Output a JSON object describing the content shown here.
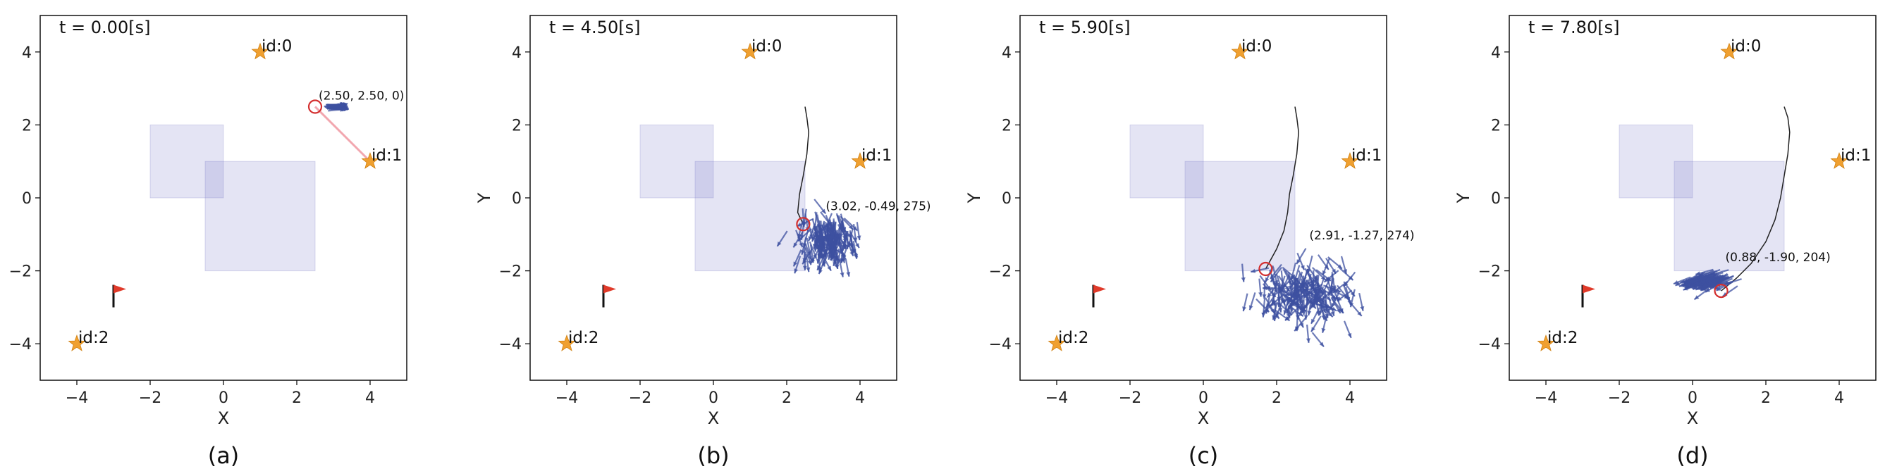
{
  "chart_data": [
    {
      "type": "scatter",
      "caption": "(a)",
      "time_label": "t = 0.00[s]",
      "xlabel": "X",
      "ylabel": "",
      "xlim": [
        -5,
        5
      ],
      "ylim": [
        -5,
        5
      ],
      "xticks": [
        "−4",
        "−2",
        "0",
        "2",
        "4"
      ],
      "yticks": [
        "−4",
        "−2",
        "0",
        "2",
        "4"
      ],
      "landmarks": [
        {
          "label": "id:0",
          "x": 1,
          "y": 4
        },
        {
          "label": "id:1",
          "x": 4,
          "y": 1
        },
        {
          "label": "id:2",
          "x": -4,
          "y": -4
        }
      ],
      "goal_flag": {
        "x": -3,
        "y": -2.5
      },
      "obstacles": [
        {
          "x0": -2,
          "y0": 0,
          "x1": 0,
          "y1": 2
        },
        {
          "x0": -0.5,
          "y0": -2,
          "x1": 2.5,
          "y1": 1
        }
      ],
      "robot": {
        "x": 2.5,
        "y": 2.5,
        "label": "(2.50, 2.50, 0)"
      },
      "observation_line": {
        "x0": 2.5,
        "y0": 2.5,
        "x1": 4,
        "y1": 1
      },
      "particles": {
        "cx": 2.85,
        "cy": 2.5,
        "sx": 0.04,
        "sy": 0.04,
        "dir": 0,
        "dir_spread": 4,
        "count": 40
      },
      "trajectory": []
    },
    {
      "type": "scatter",
      "caption": "(b)",
      "time_label": "t = 4.50[s]",
      "xlabel": "X",
      "ylabel": "Y",
      "xlim": [
        -5,
        5
      ],
      "ylim": [
        -5,
        5
      ],
      "xticks": [
        "−4",
        "−2",
        "0",
        "2",
        "4"
      ],
      "yticks": [
        "−4",
        "−2",
        "0",
        "2",
        "4"
      ],
      "landmarks": [
        {
          "label": "id:0",
          "x": 1,
          "y": 4
        },
        {
          "label": "id:1",
          "x": 4,
          "y": 1
        },
        {
          "label": "id:2",
          "x": -4,
          "y": -4
        }
      ],
      "goal_flag": {
        "x": -3,
        "y": -2.5
      },
      "obstacles": [
        {
          "x0": -2,
          "y0": 0,
          "x1": 0,
          "y1": 2
        },
        {
          "x0": -0.5,
          "y0": -2,
          "x1": 2.5,
          "y1": 1
        }
      ],
      "robot": {
        "x": 2.45,
        "y": -0.72,
        "label": "(3.02, -0.49, 275)"
      },
      "observation_line": null,
      "particles": {
        "cx": 3.1,
        "cy": -0.95,
        "sx": 0.35,
        "sy": 0.3,
        "dir": 275,
        "dir_spread": 20,
        "count": 180
      },
      "trajectory": [
        [
          2.5,
          2.5
        ],
        [
          2.55,
          2.2
        ],
        [
          2.6,
          1.8
        ],
        [
          2.55,
          1.2
        ],
        [
          2.45,
          0.6
        ],
        [
          2.35,
          0.1
        ],
        [
          2.3,
          -0.4
        ],
        [
          2.45,
          -0.72
        ]
      ]
    },
    {
      "type": "scatter",
      "caption": "(c)",
      "time_label": "t = 5.90[s]",
      "xlabel": "X",
      "ylabel": "Y",
      "xlim": [
        -5,
        5
      ],
      "ylim": [
        -5,
        5
      ],
      "xticks": [
        "−4",
        "−2",
        "0",
        "2",
        "4"
      ],
      "yticks": [
        "−4",
        "−2",
        "0",
        "2",
        "4"
      ],
      "landmarks": [
        {
          "label": "id:0",
          "x": 1,
          "y": 4
        },
        {
          "label": "id:1",
          "x": 4,
          "y": 1
        },
        {
          "label": "id:2",
          "x": -4,
          "y": -4
        }
      ],
      "goal_flag": {
        "x": -3,
        "y": -2.5
      },
      "obstacles": [
        {
          "x0": -2,
          "y0": 0,
          "x1": 0,
          "y1": 2
        },
        {
          "x0": -0.5,
          "y0": -2,
          "x1": 2.5,
          "y1": 1
        }
      ],
      "robot": {
        "x": 1.7,
        "y": -1.95,
        "label": "(2.91, -1.27, 274)"
      },
      "observation_line": null,
      "particles": {
        "cx": 2.8,
        "cy": -2.4,
        "sx": 0.65,
        "sy": 0.4,
        "dir": 274,
        "dir_spread": 35,
        "count": 200
      },
      "trajectory": [
        [
          2.5,
          2.5
        ],
        [
          2.55,
          2.2
        ],
        [
          2.6,
          1.8
        ],
        [
          2.55,
          1.2
        ],
        [
          2.45,
          0.6
        ],
        [
          2.35,
          0.1
        ],
        [
          2.3,
          -0.4
        ],
        [
          2.2,
          -0.9
        ],
        [
          2.0,
          -1.4
        ],
        [
          1.7,
          -1.95
        ]
      ]
    },
    {
      "type": "scatter",
      "caption": "(d)",
      "time_label": "t = 7.80[s]",
      "xlabel": "X",
      "ylabel": "Y",
      "xlim": [
        -5,
        5
      ],
      "ylim": [
        -5,
        5
      ],
      "xticks": [
        "−4",
        "−2",
        "0",
        "2",
        "4"
      ],
      "yticks": [
        "−4",
        "−2",
        "0",
        "2",
        "4"
      ],
      "landmarks": [
        {
          "label": "id:0",
          "x": 1,
          "y": 4
        },
        {
          "label": "id:1",
          "x": 4,
          "y": 1
        },
        {
          "label": "id:2",
          "x": -4,
          "y": -4
        }
      ],
      "goal_flag": {
        "x": -3,
        "y": -2.5
      },
      "obstacles": [
        {
          "x0": -2,
          "y0": 0,
          "x1": 0,
          "y1": 2
        },
        {
          "x0": -0.5,
          "y0": -2,
          "x1": 2.5,
          "y1": 1
        }
      ],
      "robot": {
        "x": 0.78,
        "y": -2.55,
        "label": "(0.88, -1.90, 204)"
      },
      "observation_line": null,
      "particles": {
        "cx": 0.6,
        "cy": -2.2,
        "sx": 0.3,
        "sy": 0.1,
        "dir": 204,
        "dir_spread": 6,
        "count": 120
      },
      "trajectory": [
        [
          2.5,
          2.5
        ],
        [
          2.6,
          2.2
        ],
        [
          2.65,
          1.8
        ],
        [
          2.6,
          1.2
        ],
        [
          2.5,
          0.6
        ],
        [
          2.4,
          0.0
        ],
        [
          2.25,
          -0.6
        ],
        [
          2.0,
          -1.2
        ],
        [
          1.6,
          -1.8
        ],
        [
          1.2,
          -2.2
        ],
        [
          0.78,
          -2.55
        ]
      ]
    }
  ]
}
